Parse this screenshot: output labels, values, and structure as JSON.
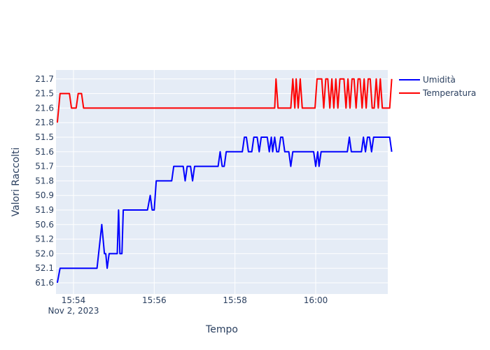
{
  "chart_data": {
    "type": "line",
    "xlabel": "Tempo",
    "ylabel": "Valori Raccolti",
    "x_date_label": "Nov 2, 2023",
    "x_ticks": [
      "15:54",
      "15:56",
      "15:58",
      "16:00"
    ],
    "y_categories": [
      "61.6",
      "52.1",
      "52.0",
      "51.2",
      "50.6",
      "51.9",
      "50.9",
      "51.8",
      "51.7",
      "51.6",
      "51.5",
      "21.8",
      "21.6",
      "21.5",
      "21.7"
    ],
    "legend_position": "top-right",
    "grid": true,
    "colors": {
      "plot_bg": "#e5ecf6",
      "grid": "#ffffff",
      "text": "#2a3f5f"
    },
    "series": [
      {
        "name": "Umidità",
        "color": "#0000ff",
        "points": [
          [
            "15:53:36",
            "61.6"
          ],
          [
            "15:53:40",
            "52.1"
          ],
          [
            "15:54:35",
            "52.1"
          ],
          [
            "15:54:42",
            "50.6"
          ],
          [
            "15:54:46",
            "52.0"
          ],
          [
            "15:54:48",
            "52.0"
          ],
          [
            "15:54:50",
            "52.1"
          ],
          [
            "15:54:53",
            "52.0"
          ],
          [
            "15:55:05",
            "52.0"
          ],
          [
            "15:55:07",
            "51.9"
          ],
          [
            "15:55:09",
            "52.0"
          ],
          [
            "15:55:12",
            "52.0"
          ],
          [
            "15:55:14",
            "51.9"
          ],
          [
            "15:55:50",
            "51.9"
          ],
          [
            "15:55:54",
            "50.9"
          ],
          [
            "15:55:57",
            "51.9"
          ],
          [
            "15:56:00",
            "51.9"
          ],
          [
            "15:56:03",
            "51.8"
          ],
          [
            "15:56:26",
            "51.8"
          ],
          [
            "15:56:29",
            "51.7"
          ],
          [
            "15:56:43",
            "51.7"
          ],
          [
            "15:56:46",
            "51.8"
          ],
          [
            "15:56:49",
            "51.7"
          ],
          [
            "15:56:54",
            "51.7"
          ],
          [
            "15:56:57",
            "51.8"
          ],
          [
            "15:57:00",
            "51.7"
          ],
          [
            "15:57:35",
            "51.7"
          ],
          [
            "15:57:38",
            "51.6"
          ],
          [
            "15:57:41",
            "51.7"
          ],
          [
            "15:57:44",
            "51.7"
          ],
          [
            "15:57:47",
            "51.6"
          ],
          [
            "15:58:11",
            "51.6"
          ],
          [
            "15:58:14",
            "51.5"
          ],
          [
            "15:58:17",
            "51.5"
          ],
          [
            "15:58:20",
            "51.6"
          ],
          [
            "15:58:25",
            "51.6"
          ],
          [
            "15:58:28",
            "51.5"
          ],
          [
            "15:58:33",
            "51.5"
          ],
          [
            "15:58:36",
            "51.6"
          ],
          [
            "15:58:39",
            "51.5"
          ],
          [
            "15:58:48",
            "51.5"
          ],
          [
            "15:58:51",
            "51.6"
          ],
          [
            "15:58:54",
            "51.5"
          ],
          [
            "15:58:56",
            "51.6"
          ],
          [
            "15:58:59",
            "51.5"
          ],
          [
            "15:59:02",
            "51.6"
          ],
          [
            "15:59:05",
            "51.6"
          ],
          [
            "15:59:08",
            "51.5"
          ],
          [
            "15:59:11",
            "51.5"
          ],
          [
            "15:59:14",
            "51.6"
          ],
          [
            "15:59:20",
            "51.6"
          ],
          [
            "15:59:23",
            "51.7"
          ],
          [
            "15:59:26",
            "51.6"
          ],
          [
            "15:59:57",
            "51.6"
          ],
          [
            "16:00:00",
            "51.7"
          ],
          [
            "16:00:03",
            "51.6"
          ],
          [
            "16:00:05",
            "51.7"
          ],
          [
            "16:00:08",
            "51.6"
          ],
          [
            "16:00:47",
            "51.6"
          ],
          [
            "16:00:50",
            "51.5"
          ],
          [
            "16:00:53",
            "51.6"
          ],
          [
            "16:01:08",
            "51.6"
          ],
          [
            "16:01:11",
            "51.5"
          ],
          [
            "16:01:14",
            "51.6"
          ],
          [
            "16:01:17",
            "51.5"
          ],
          [
            "16:01:20",
            "51.5"
          ],
          [
            "16:01:23",
            "51.6"
          ],
          [
            "16:01:26",
            "51.5"
          ],
          [
            "16:01:50",
            "51.5"
          ],
          [
            "16:01:53",
            "51.6"
          ]
        ]
      },
      {
        "name": "Temperatura",
        "color": "#ff0000",
        "points": [
          [
            "15:53:36",
            "21.8"
          ],
          [
            "15:53:40",
            "21.5"
          ],
          [
            "15:53:45",
            "21.5"
          ],
          [
            "15:53:49",
            "21.5"
          ],
          [
            "15:53:54",
            "21.5"
          ],
          [
            "15:53:57",
            "21.6"
          ],
          [
            "15:54:04",
            "21.6"
          ],
          [
            "15:54:07",
            "21.5"
          ],
          [
            "15:54:12",
            "21.5"
          ],
          [
            "15:54:15",
            "21.6"
          ],
          [
            "15:58:59",
            "21.6"
          ],
          [
            "15:59:01",
            "21.7"
          ],
          [
            "15:59:04",
            "21.6"
          ],
          [
            "15:59:23",
            "21.6"
          ],
          [
            "15:59:26",
            "21.7"
          ],
          [
            "15:59:29",
            "21.6"
          ],
          [
            "15:59:31",
            "21.7"
          ],
          [
            "15:59:34",
            "21.6"
          ],
          [
            "15:59:37",
            "21.7"
          ],
          [
            "15:59:40",
            "21.6"
          ],
          [
            "15:59:59",
            "21.6"
          ],
          [
            "16:00:02",
            "21.7"
          ],
          [
            "16:00:09",
            "21.7"
          ],
          [
            "16:00:12",
            "21.6"
          ],
          [
            "16:00:15",
            "21.7"
          ],
          [
            "16:00:18",
            "21.7"
          ],
          [
            "16:00:21",
            "21.6"
          ],
          [
            "16:00:24",
            "21.7"
          ],
          [
            "16:00:27",
            "21.6"
          ],
          [
            "16:00:30",
            "21.7"
          ],
          [
            "16:00:33",
            "21.6"
          ],
          [
            "16:00:36",
            "21.7"
          ],
          [
            "16:00:42",
            "21.7"
          ],
          [
            "16:00:45",
            "21.6"
          ],
          [
            "16:00:48",
            "21.7"
          ],
          [
            "16:00:51",
            "21.6"
          ],
          [
            "16:00:54",
            "21.7"
          ],
          [
            "16:00:57",
            "21.7"
          ],
          [
            "16:01:00",
            "21.6"
          ],
          [
            "16:01:03",
            "21.7"
          ],
          [
            "16:01:06",
            "21.7"
          ],
          [
            "16:01:09",
            "21.6"
          ],
          [
            "16:01:12",
            "21.7"
          ],
          [
            "16:01:15",
            "21.6"
          ],
          [
            "16:01:18",
            "21.7"
          ],
          [
            "16:01:21",
            "21.7"
          ],
          [
            "16:01:24",
            "21.6"
          ],
          [
            "16:01:27",
            "21.6"
          ],
          [
            "16:01:30",
            "21.7"
          ],
          [
            "16:01:33",
            "21.6"
          ],
          [
            "16:01:36",
            "21.7"
          ],
          [
            "16:01:39",
            "21.6"
          ],
          [
            "16:01:50",
            "21.6"
          ],
          [
            "16:01:53",
            "21.7"
          ]
        ]
      }
    ]
  }
}
